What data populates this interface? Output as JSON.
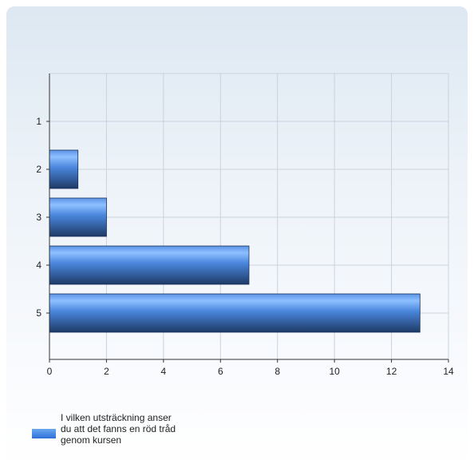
{
  "chart_data": {
    "type": "bar",
    "orientation": "horizontal",
    "categories": [
      "1",
      "2",
      "3",
      "4",
      "5"
    ],
    "series": [
      {
        "name": "I vilken utsträckning anser du att det fanns en röd tråd genom kursen",
        "values": [
          0,
          1,
          2,
          7,
          13
        ]
      }
    ],
    "xlim": [
      0,
      14
    ],
    "x_ticks": [
      "0",
      "2",
      "4",
      "6",
      "8",
      "10",
      "12",
      "14"
    ],
    "xlabel": "",
    "ylabel": "",
    "grid": true,
    "legend_position": "bottom-left",
    "colors": {
      "bar_top": "#8ec0ff",
      "bar_mid": "#4a86dd",
      "bar_bottom": "#1e3a66",
      "grid": "#c9d3dd",
      "axis": "#333333"
    }
  }
}
